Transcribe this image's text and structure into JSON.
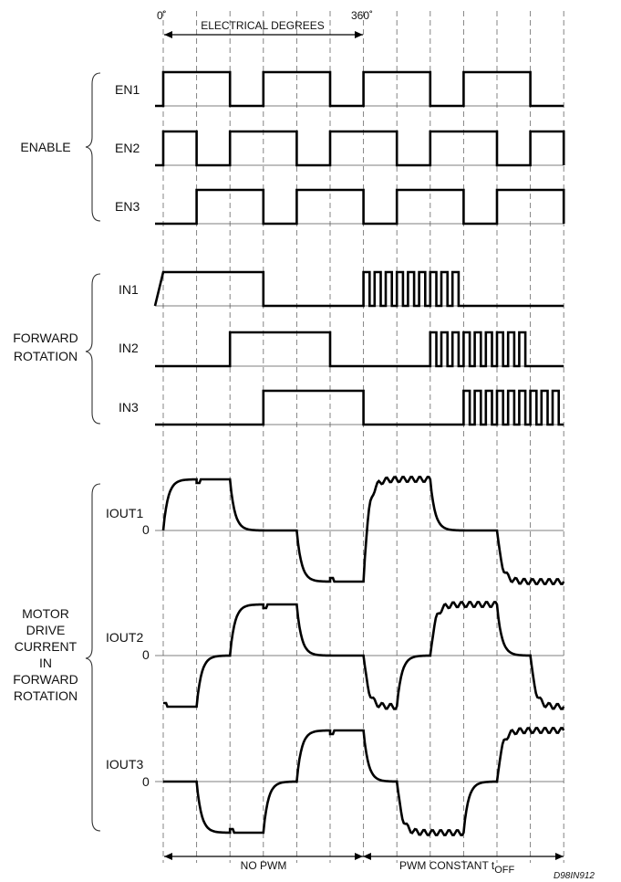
{
  "header": {
    "start_label": "0˚",
    "end_label": "360˚",
    "span_label": "ELECTRICAL DEGREES"
  },
  "groups": {
    "enable": {
      "label": "ENABLE",
      "signals": [
        {
          "name": "EN1",
          "levels": [
            1,
            1,
            0,
            1,
            1,
            0,
            1,
            1,
            0,
            1,
            1,
            0
          ]
        },
        {
          "name": "EN2",
          "levels": [
            1,
            0,
            1,
            1,
            0,
            1,
            1,
            0,
            1,
            1,
            0,
            1
          ]
        },
        {
          "name": "EN3",
          "levels": [
            0,
            1,
            1,
            0,
            1,
            1,
            0,
            1,
            1,
            0,
            1,
            1
          ]
        }
      ]
    },
    "forward_rotation": {
      "label_line1": "FORWARD",
      "label_line2": "ROTATION",
      "signals": [
        {
          "name": "IN1",
          "levels": [
            1,
            1,
            1,
            0,
            0,
            0
          ],
          "pwm_segments": [
            6,
            7,
            8
          ]
        },
        {
          "name": "IN2",
          "levels": [
            0,
            0,
            1,
            1,
            0,
            0
          ],
          "pwm_segments": [
            8,
            9,
            10
          ]
        },
        {
          "name": "IN3",
          "levels": [
            0,
            0,
            0,
            1,
            1,
            1
          ],
          "pwm_segments": [
            9,
            10,
            11
          ]
        }
      ]
    },
    "motor_current": {
      "label_lines": [
        "MOTOR",
        "DRIVE",
        "CURRENT",
        "IN",
        "FORWARD",
        "ROTATION"
      ],
      "signals": [
        {
          "name": "IOUT1",
          "zero_label": "0"
        },
        {
          "name": "IOUT2",
          "zero_label": "0"
        },
        {
          "name": "IOUT3",
          "zero_label": "0"
        }
      ]
    }
  },
  "footer": {
    "no_pwm_label": "NO PWM",
    "pwm_label": "PWM CONSTANT t",
    "pwm_label_sub": "OFF",
    "code": "D98IN912"
  }
}
